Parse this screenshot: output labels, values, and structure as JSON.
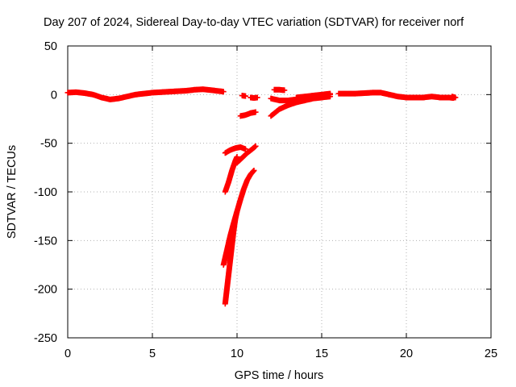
{
  "chart_data": {
    "type": "scatter",
    "title": "Day 207 of 2024, Sidereal Day-to-day VTEC variation (SDTVAR) for receiver norf",
    "xlabel": "GPS time / hours",
    "ylabel": "SDTVAR / TECUs",
    "xlim": [
      0,
      25
    ],
    "ylim": [
      -250,
      50
    ],
    "x_ticks": [
      0,
      5,
      10,
      15,
      20,
      25
    ],
    "y_ticks": [
      50,
      0,
      -50,
      -100,
      -150,
      -200,
      -250
    ],
    "grid": true,
    "marker": "plus",
    "colors": {
      "series": "#ff0000",
      "grid": "#b0b0b0",
      "axis": "#000000"
    },
    "series": [
      {
        "segments": [
          [
            [
              0.0,
              2
            ],
            [
              0.5,
              2.5
            ],
            [
              1.0,
              1.5
            ],
            [
              1.5,
              0
            ],
            [
              2.0,
              -3
            ],
            [
              2.5,
              -5
            ],
            [
              3.0,
              -4
            ],
            [
              3.5,
              -2
            ],
            [
              4.0,
              0
            ],
            [
              4.5,
              1
            ],
            [
              5.0,
              2
            ],
            [
              5.5,
              2.5
            ],
            [
              6.0,
              3
            ],
            [
              6.5,
              3.5
            ],
            [
              7.0,
              4
            ],
            [
              7.5,
              5
            ],
            [
              8.0,
              5.5
            ],
            [
              8.5,
              4.5
            ],
            [
              9.0,
              3.5
            ],
            [
              9.2,
              3
            ]
          ],
          [
            [
              10.8,
              -3
            ],
            [
              11.0,
              -3.5
            ],
            [
              11.2,
              -3
            ]
          ],
          [
            [
              10.3,
              -1
            ],
            [
              10.5,
              -1.5
            ]
          ],
          [
            [
              10.2,
              -22
            ],
            [
              10.5,
              -21
            ],
            [
              10.8,
              -19
            ],
            [
              11.1,
              -18
            ]
          ],
          [
            [
              12.0,
              -22
            ],
            [
              12.5,
              -15
            ],
            [
              13.0,
              -11
            ],
            [
              13.5,
              -8
            ],
            [
              14.0,
              -6
            ],
            [
              14.5,
              -4
            ],
            [
              15.0,
              -3
            ],
            [
              15.5,
              -2
            ]
          ],
          [
            [
              12.0,
              -4
            ],
            [
              12.5,
              -6
            ],
            [
              13.0,
              -6
            ],
            [
              13.5,
              -5
            ],
            [
              14.0,
              -4
            ],
            [
              14.5,
              -2
            ],
            [
              15.0,
              -1
            ],
            [
              15.5,
              0
            ]
          ],
          [
            [
              12.2,
              5
            ],
            [
              12.5,
              5
            ],
            [
              12.8,
              4.5
            ]
          ],
          [
            [
              13.5,
              -3
            ],
            [
              14.0,
              -2
            ],
            [
              14.5,
              -1
            ],
            [
              15.0,
              0
            ],
            [
              15.5,
              1
            ]
          ],
          [
            [
              16.0,
              1
            ],
            [
              17.0,
              1
            ],
            [
              18.0,
              2
            ],
            [
              18.5,
              2
            ],
            [
              19.0,
              0
            ],
            [
              19.5,
              -2
            ],
            [
              20.0,
              -3
            ],
            [
              20.5,
              -3
            ],
            [
              21.0,
              -3
            ],
            [
              21.5,
              -2
            ],
            [
              22.0,
              -3
            ],
            [
              22.5,
              -3
            ],
            [
              22.8,
              -3.5
            ]
          ],
          [
            [
              9.3,
              -60
            ],
            [
              9.6,
              -57
            ],
            [
              9.9,
              -55
            ],
            [
              10.2,
              -54
            ],
            [
              10.5,
              -56
            ]
          ],
          [
            [
              9.3,
              -100
            ],
            [
              9.5,
              -90
            ],
            [
              9.7,
              -78
            ],
            [
              9.9,
              -68
            ],
            [
              10.0,
              -64
            ]
          ],
          [
            [
              10.0,
              -70
            ],
            [
              10.3,
              -65
            ],
            [
              10.6,
              -60
            ],
            [
              10.9,
              -56
            ],
            [
              11.1,
              -53
            ]
          ],
          [
            [
              9.2,
              -175
            ],
            [
              9.4,
              -160
            ],
            [
              9.6,
              -145
            ],
            [
              9.8,
              -132
            ],
            [
              10.0,
              -120
            ],
            [
              10.2,
              -108
            ],
            [
              10.4,
              -97
            ],
            [
              10.6,
              -88
            ],
            [
              10.8,
              -82
            ],
            [
              11.0,
              -78
            ]
          ],
          [
            [
              9.3,
              -215
            ],
            [
              9.4,
              -200
            ],
            [
              9.5,
              -185
            ],
            [
              9.6,
              -170
            ],
            [
              9.7,
              -155
            ],
            [
              9.8,
              -140
            ],
            [
              9.9,
              -128
            ],
            [
              10.0,
              -120
            ]
          ],
          [
            [
              22.7,
              -2
            ],
            [
              22.9,
              -3
            ]
          ]
        ]
      }
    ]
  }
}
